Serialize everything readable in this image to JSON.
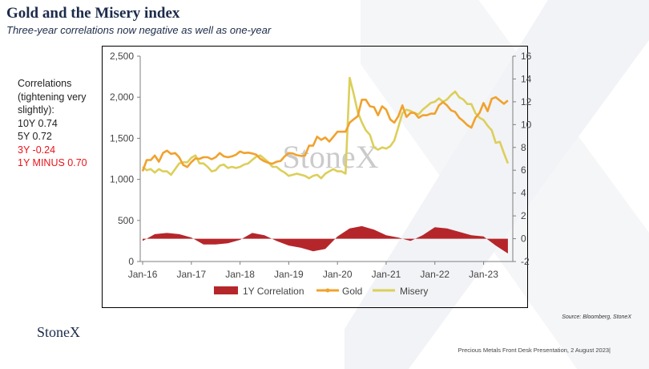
{
  "title": "Gold and the Misery index",
  "subtitle": "Three-year correlations now negative as well as one-year",
  "side_text": {
    "header": [
      "Correlations",
      "(tightening very",
      "slightly):"
    ],
    "lines": [
      {
        "text": "10Y 0.74",
        "color": "#222222"
      },
      {
        "text": "5Y 0.72",
        "color": "#222222"
      },
      {
        "text": "3Y -0.24",
        "color": "#e8141b"
      },
      {
        "text": "1Y MINUS 0.70",
        "color": "#e8141b"
      }
    ]
  },
  "watermark": "StoneX",
  "source": "Source: Bloomberg, StoneX",
  "logo": "StoneX",
  "footer": "Precious Metals Front Desk Presentation, 2 August 2023|",
  "chart_data": {
    "type": "line",
    "x_ticks": [
      "Jan-16",
      "Jan-17",
      "Jan-18",
      "Jan-19",
      "Jan-20",
      "Jan-21",
      "Jan-22",
      "Jan-23"
    ],
    "y_left": {
      "ticks": [
        "0",
        "500",
        "1,000",
        "1,500",
        "2,000",
        "2,500"
      ],
      "lim": [
        0,
        2500
      ]
    },
    "y_right": {
      "ticks": [
        "-2",
        "0",
        "2",
        "4",
        "6",
        "8",
        "10",
        "12",
        "14",
        "16"
      ],
      "lim": [
        -2,
        16
      ]
    },
    "legend": [
      "1Y Correlation",
      "Gold",
      "Misery"
    ],
    "legend_position": "bottom",
    "colors": {
      "correlation": "#b5262b",
      "gold": "#f0a22e",
      "misery": "#dccf5a"
    },
    "series": [
      {
        "name": "Gold",
        "axis": "left",
        "x": [
          "2016-01",
          "2016-02",
          "2016-03",
          "2016-04",
          "2016-05",
          "2016-06",
          "2016-07",
          "2016-08",
          "2016-09",
          "2016-10",
          "2016-11",
          "2016-12",
          "2017-01",
          "2017-02",
          "2017-03",
          "2017-04",
          "2017-05",
          "2017-06",
          "2017-07",
          "2017-08",
          "2017-09",
          "2017-10",
          "2017-11",
          "2017-12",
          "2018-01",
          "2018-02",
          "2018-03",
          "2018-04",
          "2018-05",
          "2018-06",
          "2018-07",
          "2018-08",
          "2018-09",
          "2018-10",
          "2018-11",
          "2018-12",
          "2019-01",
          "2019-02",
          "2019-03",
          "2019-04",
          "2019-05",
          "2019-06",
          "2019-07",
          "2019-08",
          "2019-09",
          "2019-10",
          "2019-11",
          "2019-12",
          "2020-01",
          "2020-02",
          "2020-03",
          "2020-04",
          "2020-05",
          "2020-06",
          "2020-07",
          "2020-08",
          "2020-09",
          "2020-10",
          "2020-11",
          "2020-12",
          "2021-01",
          "2021-02",
          "2021-03",
          "2021-04",
          "2021-05",
          "2021-06",
          "2021-07",
          "2021-08",
          "2021-09",
          "2021-10",
          "2021-11",
          "2021-12",
          "2022-01",
          "2022-02",
          "2022-03",
          "2022-04",
          "2022-05",
          "2022-06",
          "2022-07",
          "2022-08",
          "2022-09",
          "2022-10",
          "2022-11",
          "2022-12",
          "2023-01",
          "2023-02",
          "2023-03",
          "2023-04",
          "2023-05",
          "2023-06",
          "2023-07"
        ],
        "values": [
          1100,
          1235,
          1235,
          1290,
          1215,
          1320,
          1350,
          1310,
          1320,
          1270,
          1175,
          1150,
          1210,
          1255,
          1250,
          1270,
          1270,
          1245,
          1270,
          1320,
          1280,
          1270,
          1280,
          1300,
          1340,
          1320,
          1325,
          1315,
          1300,
          1250,
          1220,
          1200,
          1190,
          1215,
          1225,
          1280,
          1320,
          1315,
          1295,
          1285,
          1290,
          1410,
          1410,
          1520,
          1480,
          1510,
          1460,
          1520,
          1580,
          1580,
          1580,
          1690,
          1730,
          1770,
          1970,
          1970,
          1890,
          1880,
          1780,
          1890,
          1850,
          1730,
          1690,
          1770,
          1900,
          1760,
          1810,
          1810,
          1750,
          1780,
          1780,
          1800,
          1800,
          1900,
          1940,
          1900,
          1840,
          1820,
          1750,
          1710,
          1660,
          1630,
          1750,
          1810,
          1930,
          1830,
          1980,
          2000,
          1960,
          1920,
          1960
        ]
      },
      {
        "name": "Misery",
        "axis": "right",
        "x": [
          "2016-01",
          "2016-02",
          "2016-03",
          "2016-04",
          "2016-05",
          "2016-06",
          "2016-07",
          "2016-08",
          "2016-09",
          "2016-10",
          "2016-11",
          "2016-12",
          "2017-01",
          "2017-02",
          "2017-03",
          "2017-04",
          "2017-05",
          "2017-06",
          "2017-07",
          "2017-08",
          "2017-09",
          "2017-10",
          "2017-11",
          "2017-12",
          "2018-01",
          "2018-02",
          "2018-03",
          "2018-04",
          "2018-05",
          "2018-06",
          "2018-07",
          "2018-08",
          "2018-09",
          "2018-10",
          "2018-11",
          "2018-12",
          "2019-01",
          "2019-02",
          "2019-03",
          "2019-04",
          "2019-05",
          "2019-06",
          "2019-07",
          "2019-08",
          "2019-09",
          "2019-10",
          "2019-11",
          "2019-12",
          "2020-01",
          "2020-02",
          "2020-03",
          "2020-04",
          "2020-05",
          "2020-06",
          "2020-07",
          "2020-08",
          "2020-09",
          "2020-10",
          "2020-11",
          "2020-12",
          "2021-01",
          "2021-02",
          "2021-03",
          "2021-04",
          "2021-05",
          "2021-06",
          "2021-07",
          "2021-08",
          "2021-09",
          "2021-10",
          "2021-11",
          "2021-12",
          "2022-01",
          "2022-02",
          "2022-03",
          "2022-04",
          "2022-05",
          "2022-06",
          "2022-07",
          "2022-08",
          "2022-09",
          "2022-10",
          "2022-11",
          "2022-12",
          "2023-01",
          "2023-02",
          "2023-03",
          "2023-04",
          "2023-05",
          "2023-06",
          "2023-07"
        ],
        "values": [
          6.3,
          6.0,
          6.1,
          5.8,
          6.1,
          5.9,
          5.9,
          5.6,
          6.1,
          6.6,
          6.7,
          6.7,
          7.1,
          7.3,
          6.6,
          6.6,
          6.3,
          5.9,
          6.0,
          6.4,
          6.5,
          6.2,
          6.3,
          6.2,
          6.3,
          6.5,
          6.6,
          6.9,
          7.2,
          7.3,
          7.0,
          6.7,
          6.3,
          6.3,
          6.0,
          5.8,
          5.5,
          5.6,
          5.7,
          5.6,
          5.5,
          5.3,
          5.5,
          5.6,
          5.3,
          5.7,
          5.9,
          6.1,
          5.9,
          5.9,
          5.7,
          14.1,
          12.7,
          11.1,
          10.2,
          9.5,
          9.1,
          8.0,
          7.8,
          8.0,
          7.9,
          8.1,
          8.6,
          9.8,
          11.0,
          11.3,
          11.2,
          11.0,
          10.9,
          11.3,
          11.6,
          11.9,
          12.0,
          12.3,
          12.0,
          12.2,
          12.6,
          12.9,
          12.4,
          12.2,
          11.8,
          11.8,
          11.0,
          10.6,
          10.4,
          9.9,
          9.5,
          8.4,
          8.5,
          7.5,
          6.6
        ]
      },
      {
        "name": "1Y Correlation",
        "axis": "right",
        "x": [
          "2016-01",
          "2016-04",
          "2016-07",
          "2016-10",
          "2017-01",
          "2017-04",
          "2017-07",
          "2017-10",
          "2018-01",
          "2018-04",
          "2018-07",
          "2018-10",
          "2019-01",
          "2019-04",
          "2019-07",
          "2019-10",
          "2020-01",
          "2020-04",
          "2020-07",
          "2020-10",
          "2021-01",
          "2021-04",
          "2021-07",
          "2021-10",
          "2022-01",
          "2022-04",
          "2022-07",
          "2022-10",
          "2023-01",
          "2023-04",
          "2023-07"
        ],
        "values": [
          -0.2,
          0.4,
          0.5,
          0.4,
          0.1,
          -0.5,
          -0.5,
          -0.4,
          -0.1,
          0.5,
          0.3,
          -0.2,
          -0.6,
          -0.8,
          -1.1,
          -0.9,
          0.2,
          0.9,
          1.1,
          0.8,
          0.3,
          0.1,
          -0.2,
          0.3,
          1.0,
          0.9,
          0.6,
          0.3,
          0.2,
          -0.6,
          -1.3
        ]
      }
    ]
  }
}
